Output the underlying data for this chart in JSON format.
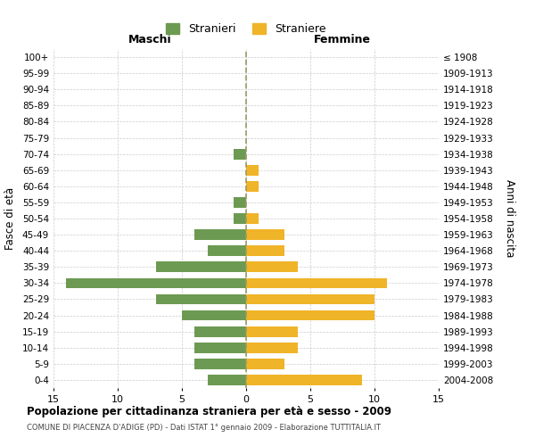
{
  "age_groups": [
    "0-4",
    "5-9",
    "10-14",
    "15-19",
    "20-24",
    "25-29",
    "30-34",
    "35-39",
    "40-44",
    "45-49",
    "50-54",
    "55-59",
    "60-64",
    "65-69",
    "70-74",
    "75-79",
    "80-84",
    "85-89",
    "90-94",
    "95-99",
    "100+"
  ],
  "birth_years": [
    "2004-2008",
    "1999-2003",
    "1994-1998",
    "1989-1993",
    "1984-1988",
    "1979-1983",
    "1974-1978",
    "1969-1973",
    "1964-1968",
    "1959-1963",
    "1954-1958",
    "1949-1953",
    "1944-1948",
    "1939-1943",
    "1934-1938",
    "1929-1933",
    "1924-1928",
    "1919-1923",
    "1914-1918",
    "1909-1913",
    "≤ 1908"
  ],
  "males": [
    3,
    4,
    4,
    4,
    5,
    7,
    14,
    7,
    3,
    4,
    1,
    1,
    0,
    0,
    1,
    0,
    0,
    0,
    0,
    0,
    0
  ],
  "females": [
    9,
    3,
    4,
    4,
    10,
    10,
    11,
    4,
    3,
    3,
    1,
    0,
    1,
    1,
    0,
    0,
    0,
    0,
    0,
    0,
    0
  ],
  "male_color": "#6d9a52",
  "female_color": "#f0b429",
  "title": "Popolazione per cittadinanza straniera per età e sesso - 2009",
  "subtitle": "COMUNE DI PIACENZA D'ADIGE (PD) - Dati ISTAT 1° gennaio 2009 - Elaborazione TUTTITALIA.IT",
  "ylabel_left": "Fasce di età",
  "ylabel_right": "Anni di nascita",
  "xlabel_maschi": "Maschi",
  "xlabel_femmine": "Femmine",
  "legend_male": "Stranieri",
  "legend_female": "Straniere",
  "xlim": 15,
  "bg_color": "#ffffff",
  "grid_color": "#cccccc",
  "center_line_color": "#999966"
}
